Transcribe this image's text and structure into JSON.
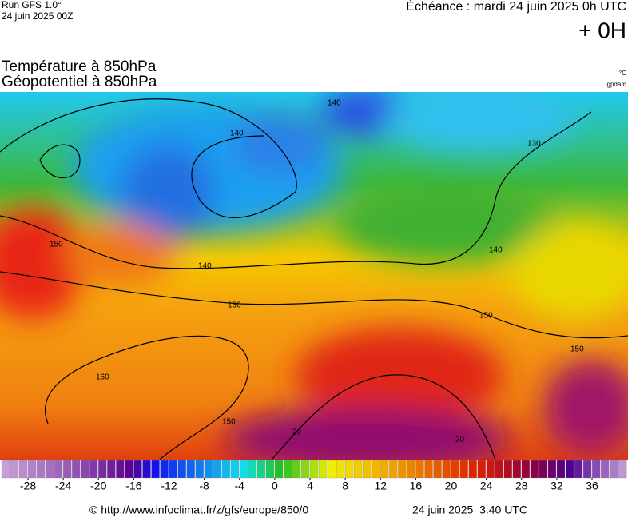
{
  "header": {
    "run": "Run GFS 1.0°",
    "run_date": "24 juin 2025 00Z",
    "forecast": "Échéance : mardi 24 juin 2025 0h UTC",
    "lead": "+ 0H"
  },
  "fields": {
    "temperature": "Température à 850hPa",
    "geopotential": "Géopotentiel à 850hPa",
    "temperature_unit": "°C",
    "geopotential_unit": "gpdam"
  },
  "contour_labels": [
    "140",
    "140",
    "140",
    "150",
    "150",
    "150",
    "160",
    "150",
    "130",
    "140",
    "150",
    "20",
    "20"
  ],
  "scale": {
    "ticks": [
      -28,
      -24,
      -20,
      -16,
      -12,
      -8,
      -4,
      0,
      4,
      8,
      12,
      16,
      20,
      24,
      28,
      32,
      36
    ]
  },
  "footer": {
    "url": "© http://www.infoclimat.fr/z/gfs/europe/850/0",
    "timestamp": "24 juin 2025  3:40 UTC"
  }
}
